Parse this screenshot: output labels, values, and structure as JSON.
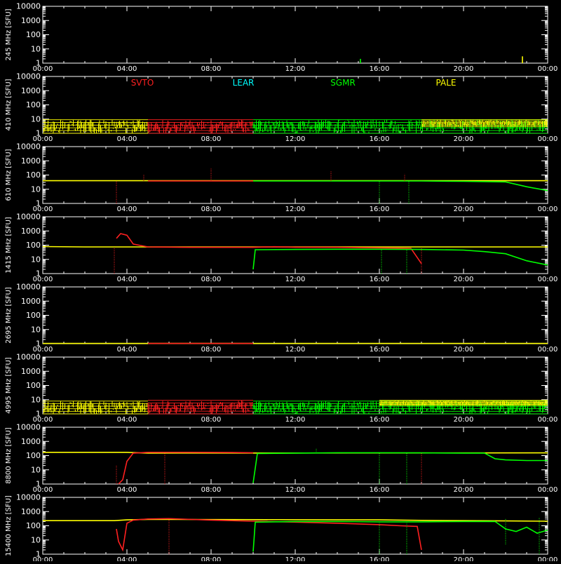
{
  "chart_data": [
    {
      "type": "line",
      "ylabel": "245 MHz [SFU]",
      "yscale": "log",
      "ylim": [
        1,
        10000
      ],
      "yticks": [
        "1",
        "10",
        "100",
        "1000",
        "10000"
      ],
      "xlim": [
        "00:00",
        "24:00"
      ],
      "xticks": [
        "00:00",
        "04:00",
        "08:00",
        "12:00",
        "16:00",
        "20:00",
        "00:00"
      ],
      "stations": [],
      "series": [
        {
          "name": "SGMR",
          "color": "#00ff00",
          "x": [
            15.1,
            15.1
          ],
          "y": [
            1,
            2
          ]
        },
        {
          "name": "PALE",
          "color": "#ffff00",
          "x": [
            22.8,
            22.8
          ],
          "y": [
            1,
            3
          ]
        }
      ]
    },
    {
      "type": "line",
      "ylabel": "410 MHz [SFU]",
      "yscale": "log",
      "ylim": [
        1,
        10000
      ],
      "yticks": [
        "1",
        "10",
        "100",
        "1000",
        "10000"
      ],
      "xlim": [
        "00:00",
        "24:00"
      ],
      "xticks": [
        "00:00",
        "04:00",
        "08:00",
        "12:00",
        "16:00",
        "20:00",
        "00:00"
      ],
      "stations": [
        {
          "name": "SVTO",
          "color": "#ff2020"
        },
        {
          "name": "LEAR",
          "color": "#00ffff"
        },
        {
          "name": "SGMR",
          "color": "#00ff00"
        },
        {
          "name": "PALE",
          "color": "#ffff00"
        }
      ],
      "bands": [
        {
          "color": "#ffff00",
          "x0": 0,
          "x1": 5.0,
          "ymin": 1,
          "ymax": 9
        },
        {
          "color": "#ff2020",
          "x0": 5.0,
          "x1": 10.0,
          "ymin": 1,
          "ymax": 9
        },
        {
          "color": "#00ff00",
          "x0": 10.0,
          "x1": 24.0,
          "ymin": 1,
          "ymax": 9
        },
        {
          "color": "#ffff00",
          "x0": 18.0,
          "x1": 24.0,
          "ymin": 3,
          "ymax": 9
        }
      ],
      "series": []
    },
    {
      "type": "line",
      "ylabel": "610 MHz [SFU]",
      "yscale": "log",
      "ylim": [
        1,
        10000
      ],
      "yticks": [
        "1",
        "10",
        "100",
        "1000",
        "10000"
      ],
      "xlim": [
        "00:00",
        "24:00"
      ],
      "xticks": [
        "00:00",
        "04:00",
        "08:00",
        "12:00",
        "16:00",
        "20:00",
        "00:00"
      ],
      "stations": [],
      "series": [
        {
          "name": "PALE",
          "color": "#ffff00",
          "x": [
            0,
            2,
            4,
            5,
            18,
            20,
            22,
            24
          ],
          "y": [
            40,
            40,
            40,
            40,
            40,
            40,
            40,
            40
          ]
        },
        {
          "name": "SVTO",
          "color": "#ff2020",
          "x": [
            5,
            6,
            7,
            8,
            9,
            10
          ],
          "y": [
            38,
            38,
            38,
            38,
            38,
            38
          ]
        },
        {
          "name": "SGMR",
          "color": "#00ff00",
          "x": [
            10,
            12,
            14,
            16,
            18,
            20,
            22,
            23,
            24
          ],
          "y": [
            38,
            38,
            38,
            38,
            38,
            36,
            33,
            15,
            8
          ]
        }
      ],
      "spikes": [
        {
          "color": "#ff2020",
          "x": 3.5,
          "y0": 1,
          "y1": 38
        },
        {
          "color": "#ff2020",
          "x": 4.8,
          "y0": 38,
          "y1": 110
        },
        {
          "color": "#ff2020",
          "x": 8.0,
          "y0": 38,
          "y1": 300
        },
        {
          "color": "#ff2020",
          "x": 13.7,
          "y0": 38,
          "y1": 180
        },
        {
          "color": "#ff2020",
          "x": 17.2,
          "y0": 38,
          "y1": 120
        },
        {
          "color": "#00ff00",
          "x": 16.0,
          "y0": 1,
          "y1": 38
        },
        {
          "color": "#00ff00",
          "x": 17.4,
          "y0": 1,
          "y1": 38
        }
      ]
    },
    {
      "type": "line",
      "ylabel": "1415 MHz [SFU]",
      "yscale": "log",
      "ylim": [
        1,
        10000
      ],
      "yticks": [
        "1",
        "10",
        "100",
        "1000",
        "10000"
      ],
      "xlim": [
        "00:00",
        "24:00"
      ],
      "xticks": [
        "00:00",
        "04:00",
        "08:00",
        "12:00",
        "16:00",
        "20:00",
        "00:00"
      ],
      "stations": [],
      "series": [
        {
          "name": "PALE",
          "color": "#ffff00",
          "x": [
            0,
            2,
            3.3,
            24
          ],
          "y": [
            80,
            75,
            75,
            75
          ]
        },
        {
          "name": "SVTO",
          "color": "#ff2020",
          "x": [
            3.5,
            3.7,
            4.0,
            4.3,
            5,
            7,
            9,
            10,
            11,
            12,
            14,
            16,
            17.5,
            18
          ],
          "y": [
            300,
            650,
            500,
            120,
            75,
            70,
            70,
            70,
            78,
            72,
            70,
            65,
            60,
            5
          ]
        },
        {
          "name": "SGMR",
          "color": "#00ff00",
          "x": [
            10,
            10.1,
            12,
            14,
            16,
            18,
            20,
            21,
            22,
            23,
            24
          ],
          "y": [
            2,
            48,
            50,
            52,
            52,
            50,
            45,
            35,
            25,
            8,
            4
          ]
        }
      ],
      "spikes": [
        {
          "color": "#ff2020",
          "x": 3.4,
          "y0": 1,
          "y1": 60
        },
        {
          "color": "#00ff00",
          "x": 16.1,
          "y0": 1,
          "y1": 50
        },
        {
          "color": "#00ff00",
          "x": 17.3,
          "y0": 1,
          "y1": 50
        },
        {
          "color": "#ff2020",
          "x": 18.0,
          "y0": 1,
          "y1": 60
        }
      ]
    },
    {
      "type": "line",
      "ylabel": "2695 MHz [SFU]",
      "yscale": "log",
      "ylim": [
        1,
        10000
      ],
      "yticks": [
        "1",
        "10",
        "100",
        "1000",
        "10000"
      ],
      "xlim": [
        "00:00",
        "24:00"
      ],
      "xticks": [
        "00:00",
        "04:00",
        "08:00",
        "12:00",
        "16:00",
        "20:00",
        "00:00"
      ],
      "stations": [],
      "series": [
        {
          "name": "PALE",
          "color": "#ffff00",
          "x": [
            0,
            24
          ],
          "y": [
            1.05,
            1.05
          ]
        },
        {
          "name": "SVTO",
          "color": "#ff2020",
          "x": [
            5,
            10
          ],
          "y": [
            1.05,
            1.05
          ]
        }
      ]
    },
    {
      "type": "line",
      "ylabel": "4995 MHz [SFU]",
      "yscale": "log",
      "ylim": [
        1,
        10000
      ],
      "yticks": [
        "1",
        "10",
        "100",
        "1000",
        "10000"
      ],
      "xlim": [
        "00:00",
        "24:00"
      ],
      "xticks": [
        "00:00",
        "04:00",
        "08:00",
        "12:00",
        "16:00",
        "20:00",
        "00:00"
      ],
      "stations": [],
      "bands": [
        {
          "color": "#ffff00",
          "x0": 0,
          "x1": 5.0,
          "ymin": 1,
          "ymax": 8
        },
        {
          "color": "#ff2020",
          "x0": 5.0,
          "x1": 10.0,
          "ymin": 1,
          "ymax": 9
        },
        {
          "color": "#00ff00",
          "x0": 10.0,
          "x1": 24.0,
          "ymin": 1,
          "ymax": 8
        },
        {
          "color": "#ffff00",
          "x0": 16.0,
          "x1": 24.0,
          "ymin": 4,
          "ymax": 9
        }
      ],
      "series": []
    },
    {
      "type": "line",
      "ylabel": "8800 MHz [SFU]",
      "yscale": "log",
      "ylim": [
        1,
        10000
      ],
      "yticks": [
        "1",
        "10",
        "100",
        "1000",
        "10000"
      ],
      "xlim": [
        "00:00",
        "24:00"
      ],
      "xticks": [
        "00:00",
        "04:00",
        "08:00",
        "12:00",
        "16:00",
        "20:00",
        "00:00"
      ],
      "stations": [],
      "series": [
        {
          "name": "PALE",
          "color": "#ffff00",
          "x": [
            0,
            4.0,
            5.0,
            24
          ],
          "y": [
            170,
            170,
            150,
            155
          ]
        },
        {
          "name": "SVTO",
          "color": "#ff2020",
          "x": [
            3.6,
            3.8,
            4.0,
            4.3,
            5,
            7,
            9,
            10
          ],
          "y": [
            1,
            2,
            40,
            150,
            170,
            170,
            165,
            160
          ]
        },
        {
          "name": "SGMR",
          "color": "#00ff00",
          "x": [
            10,
            10.2,
            12,
            14,
            16,
            18,
            20,
            21,
            21.5,
            22,
            23,
            24
          ],
          "y": [
            1.2,
            140,
            150,
            160,
            160,
            155,
            150,
            150,
            60,
            50,
            45,
            45
          ]
        }
      ],
      "spikes": [
        {
          "color": "#ff2020",
          "x": 3.5,
          "y0": 1,
          "y1": 20
        },
        {
          "color": "#ff2020",
          "x": 5.8,
          "y0": 1,
          "y1": 150
        },
        {
          "color": "#00ff00",
          "x": 13.0,
          "y0": 150,
          "y1": 350
        },
        {
          "color": "#00ff00",
          "x": 16.0,
          "y0": 1,
          "y1": 150
        },
        {
          "color": "#00ff00",
          "x": 17.3,
          "y0": 1,
          "y1": 150
        },
        {
          "color": "#ff2020",
          "x": 18.0,
          "y0": 1,
          "y1": 150
        }
      ]
    },
    {
      "type": "line",
      "ylabel": "15400 MHz [SFU]",
      "yscale": "log",
      "ylim": [
        1,
        10000
      ],
      "yticks": [
        "1",
        "10",
        "100",
        "1000",
        "10000"
      ],
      "xlim": [
        "00:00",
        "24:00"
      ],
      "xticks": [
        "00:00",
        "04:00",
        "08:00",
        "12:00",
        "16:00",
        "20:00",
        "00:00"
      ],
      "stations": [],
      "series": [
        {
          "name": "PALE",
          "color": "#ffff00",
          "x": [
            0,
            3.4,
            4.0,
            5.0,
            16,
            18,
            20,
            22,
            24
          ],
          "y": [
            230,
            230,
            260,
            280,
            260,
            240,
            230,
            220,
            210
          ]
        },
        {
          "name": "SVTO",
          "color": "#ff2020",
          "x": [
            3.5,
            3.6,
            3.8,
            4.0,
            4.3,
            5,
            6,
            8,
            10,
            12,
            14,
            16,
            17,
            17.8,
            18
          ],
          "y": [
            60,
            8,
            2,
            150,
            250,
            300,
            320,
            250,
            210,
            180,
            150,
            120,
            100,
            90,
            2
          ]
        },
        {
          "name": "SGMR",
          "color": "#00ff00",
          "x": [
            10,
            10.1,
            12,
            14,
            16,
            18,
            20,
            21.5,
            22,
            22.5,
            23,
            23.5,
            24
          ],
          "y": [
            1.5,
            180,
            200,
            200,
            190,
            190,
            200,
            200,
            60,
            40,
            80,
            30,
            50
          ]
        }
      ],
      "spikes": [
        {
          "color": "#ff2020",
          "x": 6.0,
          "y0": 1,
          "y1": 300
        },
        {
          "color": "#00ff00",
          "x": 16.0,
          "y0": 1,
          "y1": 180
        },
        {
          "color": "#00ff00",
          "x": 17.3,
          "y0": 1,
          "y1": 180
        },
        {
          "color": "#00ff00",
          "x": 22.0,
          "y0": 5,
          "y1": 300
        },
        {
          "color": "#00ff00",
          "x": 23.6,
          "y0": 1,
          "y1": 400
        }
      ]
    }
  ]
}
